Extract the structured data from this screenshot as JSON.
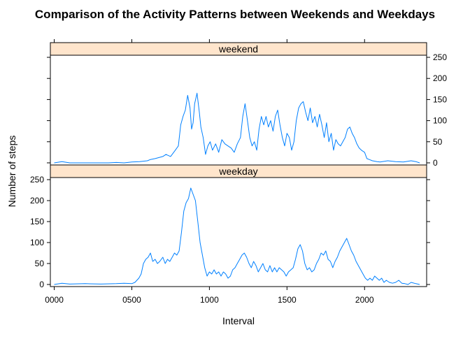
{
  "chart_data": {
    "type": "line",
    "title": "Comparison of the Activity Patterns between Weekends and Weekdays",
    "xlabel": "Interval",
    "ylabel": "Number of steps",
    "xlim": [
      -25,
      2400
    ],
    "ylim": [
      -5,
      255
    ],
    "x_ticks": [
      0,
      500,
      1000,
      1500,
      2000
    ],
    "x_tick_labels": [
      "0000",
      "0500",
      "1000",
      "1500",
      "2000"
    ],
    "y_ticks": [
      0,
      50,
      100,
      150,
      200,
      250
    ],
    "y_tick_labels": [
      "0",
      "50",
      "100",
      "150",
      "200",
      "250"
    ],
    "line_color": "#0080ff",
    "strip_color": "#ffe5cc",
    "panels": [
      {
        "name": "weekend",
        "yaxis_side": "right",
        "points": [
          [
            0,
            0
          ],
          [
            50,
            3
          ],
          [
            100,
            0
          ],
          [
            200,
            0
          ],
          [
            300,
            0
          ],
          [
            350,
            0
          ],
          [
            400,
            1
          ],
          [
            450,
            0
          ],
          [
            500,
            2
          ],
          [
            550,
            3
          ],
          [
            600,
            5
          ],
          [
            620,
            8
          ],
          [
            650,
            10
          ],
          [
            700,
            15
          ],
          [
            720,
            20
          ],
          [
            750,
            15
          ],
          [
            780,
            30
          ],
          [
            800,
            40
          ],
          [
            815,
            90
          ],
          [
            830,
            110
          ],
          [
            845,
            125
          ],
          [
            860,
            160
          ],
          [
            875,
            130
          ],
          [
            885,
            80
          ],
          [
            895,
            95
          ],
          [
            905,
            140
          ],
          [
            920,
            165
          ],
          [
            935,
            120
          ],
          [
            945,
            85
          ],
          [
            960,
            60
          ],
          [
            975,
            20
          ],
          [
            990,
            40
          ],
          [
            1005,
            50
          ],
          [
            1020,
            30
          ],
          [
            1040,
            45
          ],
          [
            1060,
            25
          ],
          [
            1080,
            55
          ],
          [
            1100,
            45
          ],
          [
            1120,
            40
          ],
          [
            1140,
            35
          ],
          [
            1160,
            25
          ],
          [
            1180,
            45
          ],
          [
            1200,
            60
          ],
          [
            1215,
            110
          ],
          [
            1230,
            140
          ],
          [
            1245,
            100
          ],
          [
            1260,
            60
          ],
          [
            1275,
            40
          ],
          [
            1290,
            50
          ],
          [
            1305,
            30
          ],
          [
            1320,
            80
          ],
          [
            1335,
            110
          ],
          [
            1350,
            90
          ],
          [
            1365,
            110
          ],
          [
            1380,
            85
          ],
          [
            1395,
            100
          ],
          [
            1410,
            75
          ],
          [
            1425,
            110
          ],
          [
            1440,
            125
          ],
          [
            1455,
            90
          ],
          [
            1470,
            60
          ],
          [
            1485,
            40
          ],
          [
            1500,
            70
          ],
          [
            1515,
            60
          ],
          [
            1530,
            30
          ],
          [
            1545,
            50
          ],
          [
            1560,
            100
          ],
          [
            1575,
            130
          ],
          [
            1590,
            140
          ],
          [
            1605,
            145
          ],
          [
            1620,
            120
          ],
          [
            1635,
            100
          ],
          [
            1650,
            130
          ],
          [
            1665,
            95
          ],
          [
            1680,
            110
          ],
          [
            1695,
            85
          ],
          [
            1710,
            115
          ],
          [
            1725,
            90
          ],
          [
            1740,
            60
          ],
          [
            1755,
            95
          ],
          [
            1770,
            50
          ],
          [
            1785,
            70
          ],
          [
            1800,
            30
          ],
          [
            1815,
            55
          ],
          [
            1830,
            45
          ],
          [
            1845,
            40
          ],
          [
            1860,
            50
          ],
          [
            1875,
            60
          ],
          [
            1890,
            80
          ],
          [
            1905,
            85
          ],
          [
            1920,
            70
          ],
          [
            1935,
            60
          ],
          [
            1950,
            45
          ],
          [
            1965,
            35
          ],
          [
            1980,
            30
          ],
          [
            2000,
            25
          ],
          [
            2015,
            10
          ],
          [
            2030,
            8
          ],
          [
            2050,
            5
          ],
          [
            2080,
            3
          ],
          [
            2100,
            2
          ],
          [
            2150,
            5
          ],
          [
            2200,
            3
          ],
          [
            2250,
            2
          ],
          [
            2300,
            5
          ],
          [
            2330,
            3
          ],
          [
            2355,
            0
          ]
        ]
      },
      {
        "name": "weekday",
        "yaxis_side": "left",
        "points": [
          [
            0,
            0
          ],
          [
            50,
            3
          ],
          [
            100,
            1
          ],
          [
            200,
            2
          ],
          [
            300,
            1
          ],
          [
            400,
            2
          ],
          [
            450,
            3
          ],
          [
            500,
            2
          ],
          [
            520,
            5
          ],
          [
            545,
            15
          ],
          [
            560,
            25
          ],
          [
            575,
            50
          ],
          [
            590,
            60
          ],
          [
            605,
            65
          ],
          [
            620,
            75
          ],
          [
            635,
            55
          ],
          [
            650,
            60
          ],
          [
            665,
            50
          ],
          [
            680,
            55
          ],
          [
            700,
            65
          ],
          [
            715,
            50
          ],
          [
            730,
            60
          ],
          [
            745,
            55
          ],
          [
            760,
            65
          ],
          [
            775,
            75
          ],
          [
            790,
            70
          ],
          [
            805,
            80
          ],
          [
            820,
            125
          ],
          [
            835,
            175
          ],
          [
            850,
            195
          ],
          [
            865,
            205
          ],
          [
            880,
            230
          ],
          [
            895,
            215
          ],
          [
            910,
            200
          ],
          [
            925,
            150
          ],
          [
            940,
            100
          ],
          [
            955,
            70
          ],
          [
            970,
            40
          ],
          [
            985,
            20
          ],
          [
            1000,
            30
          ],
          [
            1015,
            25
          ],
          [
            1030,
            35
          ],
          [
            1045,
            25
          ],
          [
            1060,
            30
          ],
          [
            1075,
            20
          ],
          [
            1090,
            30
          ],
          [
            1105,
            25
          ],
          [
            1120,
            15
          ],
          [
            1135,
            20
          ],
          [
            1150,
            35
          ],
          [
            1165,
            40
          ],
          [
            1180,
            50
          ],
          [
            1195,
            60
          ],
          [
            1210,
            70
          ],
          [
            1225,
            75
          ],
          [
            1240,
            65
          ],
          [
            1255,
            50
          ],
          [
            1270,
            40
          ],
          [
            1285,
            55
          ],
          [
            1300,
            45
          ],
          [
            1315,
            30
          ],
          [
            1330,
            40
          ],
          [
            1345,
            50
          ],
          [
            1360,
            35
          ],
          [
            1375,
            30
          ],
          [
            1390,
            45
          ],
          [
            1405,
            30
          ],
          [
            1420,
            40
          ],
          [
            1435,
            30
          ],
          [
            1450,
            40
          ],
          [
            1465,
            35
          ],
          [
            1480,
            30
          ],
          [
            1495,
            20
          ],
          [
            1510,
            30
          ],
          [
            1525,
            35
          ],
          [
            1540,
            40
          ],
          [
            1555,
            60
          ],
          [
            1570,
            85
          ],
          [
            1585,
            95
          ],
          [
            1600,
            80
          ],
          [
            1615,
            50
          ],
          [
            1630,
            35
          ],
          [
            1645,
            40
          ],
          [
            1660,
            30
          ],
          [
            1675,
            35
          ],
          [
            1690,
            50
          ],
          [
            1705,
            60
          ],
          [
            1720,
            75
          ],
          [
            1735,
            70
          ],
          [
            1750,
            80
          ],
          [
            1765,
            60
          ],
          [
            1780,
            55
          ],
          [
            1795,
            40
          ],
          [
            1810,
            55
          ],
          [
            1825,
            65
          ],
          [
            1840,
            80
          ],
          [
            1855,
            90
          ],
          [
            1870,
            100
          ],
          [
            1885,
            110
          ],
          [
            1900,
            95
          ],
          [
            1915,
            80
          ],
          [
            1930,
            70
          ],
          [
            1945,
            55
          ],
          [
            1960,
            45
          ],
          [
            1975,
            35
          ],
          [
            1990,
            25
          ],
          [
            2005,
            15
          ],
          [
            2020,
            10
          ],
          [
            2035,
            15
          ],
          [
            2050,
            10
          ],
          [
            2065,
            20
          ],
          [
            2080,
            15
          ],
          [
            2095,
            10
          ],
          [
            2110,
            15
          ],
          [
            2125,
            5
          ],
          [
            2140,
            10
          ],
          [
            2160,
            5
          ],
          [
            2180,
            3
          ],
          [
            2200,
            5
          ],
          [
            2220,
            10
          ],
          [
            2240,
            3
          ],
          [
            2260,
            2
          ],
          [
            2280,
            0
          ],
          [
            2300,
            5
          ],
          [
            2330,
            2
          ],
          [
            2355,
            0
          ]
        ]
      }
    ]
  }
}
